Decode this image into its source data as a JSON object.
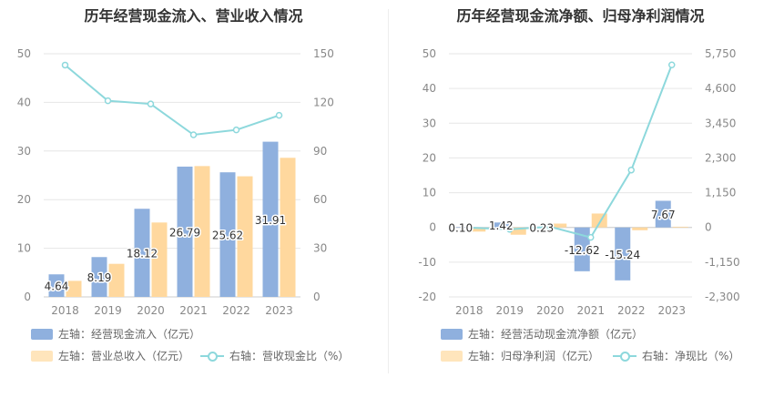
{
  "colors": {
    "bar1": "#8fb0de",
    "bar2": "#ffd89e",
    "line": "#8dd8dc",
    "grid": "#e6e6e6",
    "tick": "#888888"
  },
  "chart_data": [
    {
      "type": "bar",
      "title": "历年经营现金流入、营业收入情况",
      "categories": [
        "2018",
        "2019",
        "2020",
        "2021",
        "2022",
        "2023"
      ],
      "left_axis": {
        "min": 0,
        "max": 50,
        "ticks": [
          "0",
          "10",
          "20",
          "30",
          "40",
          "50"
        ]
      },
      "right_axis": {
        "min": 0,
        "max": 150,
        "ticks": [
          "0",
          "30",
          "60",
          "90",
          "120",
          "150"
        ]
      },
      "series": [
        {
          "name": "左轴：经营现金流入（亿元）",
          "kind": "bar",
          "axis": "left",
          "values": [
            4.64,
            8.19,
            18.12,
            26.79,
            25.62,
            31.91
          ],
          "labels": [
            "4.64",
            "8.19",
            "18.12",
            "26.79",
            "25.62",
            "31.91"
          ]
        },
        {
          "name": "左轴：营业总收入（亿元）",
          "kind": "bar",
          "axis": "left",
          "values": [
            3.3,
            6.8,
            15.3,
            26.9,
            24.8,
            28.6
          ]
        },
        {
          "name": "右轴：营收现金比（%）",
          "kind": "line",
          "axis": "right",
          "values": [
            143,
            121,
            119,
            100,
            103,
            112
          ]
        }
      ],
      "grid": true,
      "legend_position": "bottom"
    },
    {
      "type": "bar",
      "title": "历年经营现金流净额、归母净利润情况",
      "categories": [
        "2018",
        "2019",
        "2020",
        "2021",
        "2022",
        "2023"
      ],
      "left_axis": {
        "min": -20,
        "max": 50,
        "ticks": [
          "-20",
          "-10",
          "0",
          "10",
          "20",
          "30",
          "40",
          "50"
        ]
      },
      "right_axis": {
        "min": -2300,
        "max": 5750,
        "ticks": [
          "-2,300",
          "-1,150",
          "0",
          "1,150",
          "2,300",
          "3,450",
          "4,600",
          "5,750"
        ]
      },
      "series": [
        {
          "name": "左轴：经营活动现金流净额（亿元）",
          "kind": "bar",
          "axis": "left",
          "values": [
            0.1,
            1.42,
            0.23,
            -12.62,
            -15.24,
            7.67
          ],
          "labels": [
            "0.10",
            "1.42",
            "0.23",
            "-12.62",
            "-15.24",
            "7.67"
          ]
        },
        {
          "name": "左轴：归母净利润（亿元）",
          "kind": "bar",
          "axis": "left",
          "values": [
            -1.2,
            -2.1,
            1.1,
            4.0,
            -0.8,
            0.2
          ]
        },
        {
          "name": "右轴：净现比（%）",
          "kind": "line",
          "axis": "right",
          "values": [
            -10,
            -60,
            20,
            -330,
            1900,
            5380
          ]
        }
      ],
      "grid": true,
      "legend_position": "bottom"
    }
  ]
}
